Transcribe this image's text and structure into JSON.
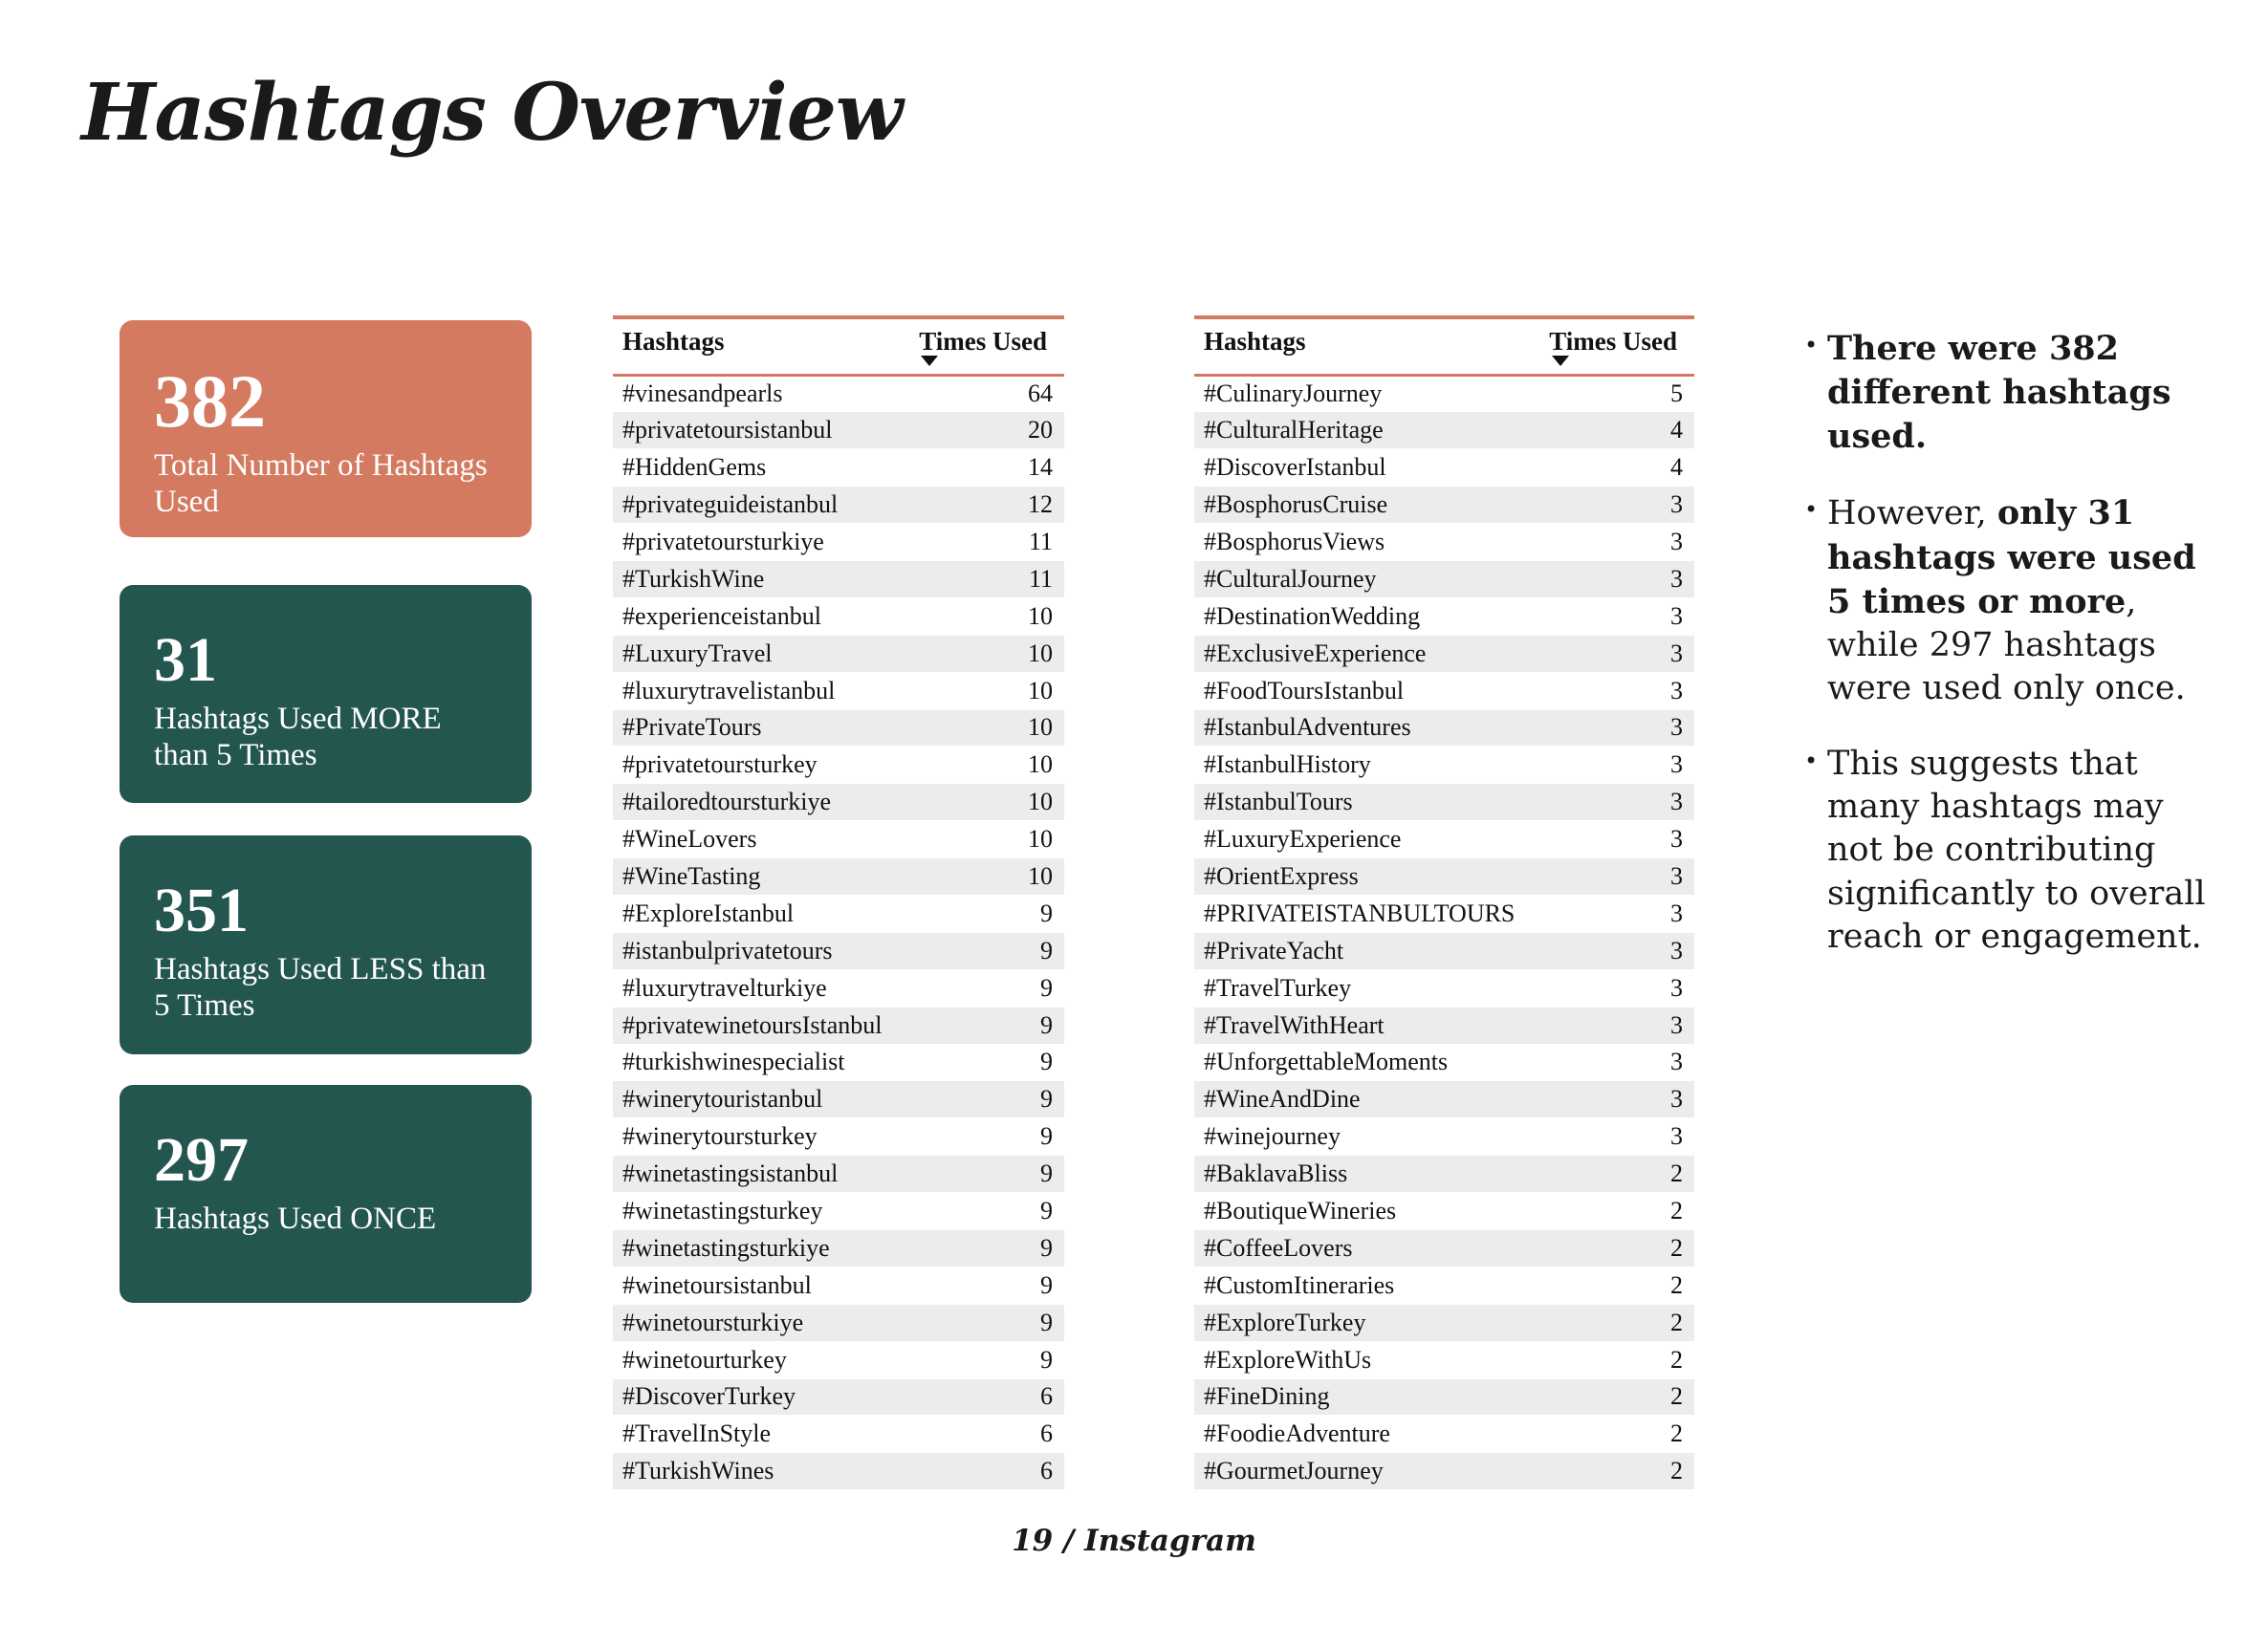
{
  "title": "Hashtags Overview",
  "colors": {
    "accent_card": "#d47a60",
    "dark_card": "#245650",
    "table_rule": "#d4795f",
    "row_stripe": "#ececec"
  },
  "cards": [
    {
      "value": "382",
      "label": "Total Number of Hashtags Used"
    },
    {
      "value": "31",
      "label": "Hashtags Used MORE than 5 Times"
    },
    {
      "value": "351",
      "label": "Hashtags Used LESS than 5 Times"
    },
    {
      "value": "297",
      "label": "Hashtags Used ONCE"
    }
  ],
  "table_headers": {
    "hashtag": "Hashtags",
    "count": "Times Used"
  },
  "table_left": [
    [
      "#vinesandpearls",
      "64"
    ],
    [
      "#privatetoursistanbul",
      "20"
    ],
    [
      "#HiddenGems",
      "14"
    ],
    [
      "#privateguideistanbul",
      "12"
    ],
    [
      "#privatetoursturkiye",
      "11"
    ],
    [
      "#TurkishWine",
      "11"
    ],
    [
      "#experienceistanbul",
      "10"
    ],
    [
      "#LuxuryTravel",
      "10"
    ],
    [
      "#luxurytravelistanbul",
      "10"
    ],
    [
      "#PrivateTours",
      "10"
    ],
    [
      "#privatetoursturkey",
      "10"
    ],
    [
      "#tailoredtoursturkiye",
      "10"
    ],
    [
      "#WineLovers",
      "10"
    ],
    [
      "#WineTasting",
      "10"
    ],
    [
      "#ExploreIstanbul",
      "9"
    ],
    [
      "#istanbulprivatetours",
      "9"
    ],
    [
      "#luxurytravelturkiye",
      "9"
    ],
    [
      "#privatewinetoursIstanbul",
      "9"
    ],
    [
      "#turkishwinespecialist",
      "9"
    ],
    [
      "#winerytouristanbul",
      "9"
    ],
    [
      "#winerytoursturkey",
      "9"
    ],
    [
      "#winetastingsistanbul",
      "9"
    ],
    [
      "#winetastingsturkey",
      "9"
    ],
    [
      "#winetastingsturkiye",
      "9"
    ],
    [
      "#winetoursistanbul",
      "9"
    ],
    [
      "#winetoursturkiye",
      "9"
    ],
    [
      "#winetourturkey",
      "9"
    ],
    [
      "#DiscoverTurkey",
      "6"
    ],
    [
      "#TravelInStyle",
      "6"
    ],
    [
      "#TurkishWines",
      "6"
    ]
  ],
  "table_right": [
    [
      "#CulinaryJourney",
      "5"
    ],
    [
      "#CulturalHeritage",
      "4"
    ],
    [
      "#DiscoverIstanbul",
      "4"
    ],
    [
      "#BosphorusCruise",
      "3"
    ],
    [
      "#BosphorusViews",
      "3"
    ],
    [
      "#CulturalJourney",
      "3"
    ],
    [
      "#DestinationWedding",
      "3"
    ],
    [
      "#ExclusiveExperience",
      "3"
    ],
    [
      "#FoodToursIstanbul",
      "3"
    ],
    [
      "#IstanbulAdventures",
      "3"
    ],
    [
      "#IstanbulHistory",
      "3"
    ],
    [
      "#IstanbulTours",
      "3"
    ],
    [
      "#LuxuryExperience",
      "3"
    ],
    [
      "#OrientExpress",
      "3"
    ],
    [
      "#PRIVATEISTANBULTOURS",
      "3"
    ],
    [
      "#PrivateYacht",
      "3"
    ],
    [
      "#TravelTurkey",
      "3"
    ],
    [
      "#TravelWithHeart",
      "3"
    ],
    [
      "#UnforgettableMoments",
      "3"
    ],
    [
      "#WineAndDine",
      "3"
    ],
    [
      "#winejourney",
      "3"
    ],
    [
      "#BaklavaBliss",
      "2"
    ],
    [
      "#BoutiqueWineries",
      "2"
    ],
    [
      "#CoffeeLovers",
      "2"
    ],
    [
      "#CustomItineraries",
      "2"
    ],
    [
      "#ExploreTurkey",
      "2"
    ],
    [
      "#ExploreWithUs",
      "2"
    ],
    [
      "#FineDining",
      "2"
    ],
    [
      "#FoodieAdventure",
      "2"
    ],
    [
      "#GourmetJourney",
      "2"
    ]
  ],
  "bullets": [
    [
      {
        "text": "There were 382 different hashtags used.",
        "bold": true
      }
    ],
    [
      {
        "text": "However, ",
        "bold": false
      },
      {
        "text": "only 31 hashtags were used 5 times or more",
        "bold": true
      },
      {
        "text": ", while 297 hashtags were used only once.",
        "bold": false
      }
    ],
    [
      {
        "text": "This suggests that many hashtags may not be contributing significantly to overall reach or engagement.",
        "bold": false
      }
    ]
  ],
  "footer": "19 / Instagram"
}
